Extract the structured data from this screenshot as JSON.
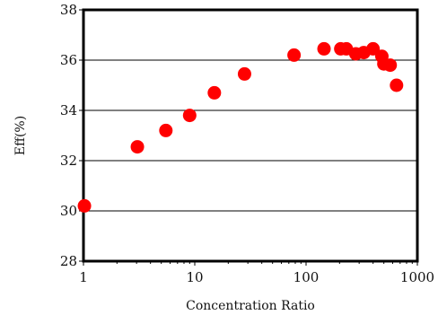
{
  "chart_data": {
    "type": "scatter",
    "title": "",
    "xlabel": "Concentration Ratio",
    "ylabel": "Eff(%)",
    "xscale": "log",
    "xlim": [
      1,
      1000
    ],
    "ylim": [
      28,
      38
    ],
    "x_ticks": [
      1,
      10,
      100,
      1000
    ],
    "x_tick_labels": [
      "1",
      "10",
      "100",
      "1000"
    ],
    "y_ticks": [
      28,
      30,
      32,
      34,
      36,
      38
    ],
    "y_tick_labels": [
      "28",
      "30",
      "32",
      "34",
      "36",
      "38"
    ],
    "grid": "horizontal",
    "legend": "none",
    "marker_color": "#ff0000",
    "points": [
      {
        "x": 1.02,
        "y": 30.2
      },
      {
        "x": 3.05,
        "y": 32.55
      },
      {
        "x": 5.5,
        "y": 33.2
      },
      {
        "x": 9.0,
        "y": 33.8
      },
      {
        "x": 15.0,
        "y": 34.7
      },
      {
        "x": 28.0,
        "y": 35.45
      },
      {
        "x": 78.0,
        "y": 36.2
      },
      {
        "x": 145.0,
        "y": 36.45
      },
      {
        "x": 205.0,
        "y": 36.45
      },
      {
        "x": 230.0,
        "y": 36.45
      },
      {
        "x": 280.0,
        "y": 36.25
      },
      {
        "x": 330.0,
        "y": 36.3
      },
      {
        "x": 400.0,
        "y": 36.45
      },
      {
        "x": 480.0,
        "y": 36.15
      },
      {
        "x": 500.0,
        "y": 35.85
      },
      {
        "x": 570.0,
        "y": 35.8
      },
      {
        "x": 650.0,
        "y": 35.0
      }
    ]
  }
}
